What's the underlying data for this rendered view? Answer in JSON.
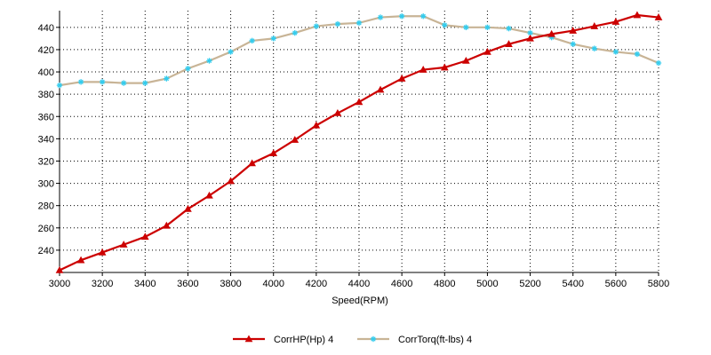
{
  "chart_data": {
    "type": "line",
    "title": "",
    "xlabel": "Speed(RPM)",
    "ylabel": "",
    "xlim": [
      3000,
      5800
    ],
    "ylim": [
      220,
      455
    ],
    "x_ticks": [
      3000,
      3200,
      3400,
      3600,
      3800,
      4000,
      4200,
      4400,
      4600,
      4800,
      5000,
      5200,
      5400,
      5600,
      5800
    ],
    "y_ticks": [
      240,
      260,
      280,
      300,
      320,
      340,
      360,
      380,
      400,
      420,
      440
    ],
    "grid": true,
    "legend_position": "bottom",
    "x": [
      3000,
      3100,
      3200,
      3300,
      3400,
      3500,
      3600,
      3700,
      3800,
      3900,
      4000,
      4100,
      4200,
      4300,
      4400,
      4500,
      4600,
      4700,
      4800,
      4900,
      5000,
      5100,
      5200,
      5300,
      5400,
      5500,
      5600,
      5700,
      5800
    ],
    "series": [
      {
        "name": "CorrHP(Hp)  4",
        "color": "#cc0000",
        "marker": "triangle",
        "values": [
          222,
          231,
          238,
          245,
          252,
          262,
          277,
          289,
          302,
          318,
          327,
          339,
          352,
          363,
          373,
          384,
          394,
          402,
          404,
          410,
          418,
          425,
          430,
          434,
          437,
          441,
          445,
          451,
          449
        ]
      },
      {
        "name": "CorrTorq(ft-lbs)  4",
        "color": "#c8b496",
        "marker_color": "#33ccee",
        "marker": "star",
        "values": [
          388,
          391,
          391,
          390,
          390,
          394,
          403,
          410,
          418,
          428,
          430,
          435,
          441,
          443,
          444,
          449,
          450,
          450,
          442,
          440,
          440,
          439,
          435,
          431,
          425,
          421,
          418,
          416,
          408
        ]
      }
    ]
  }
}
